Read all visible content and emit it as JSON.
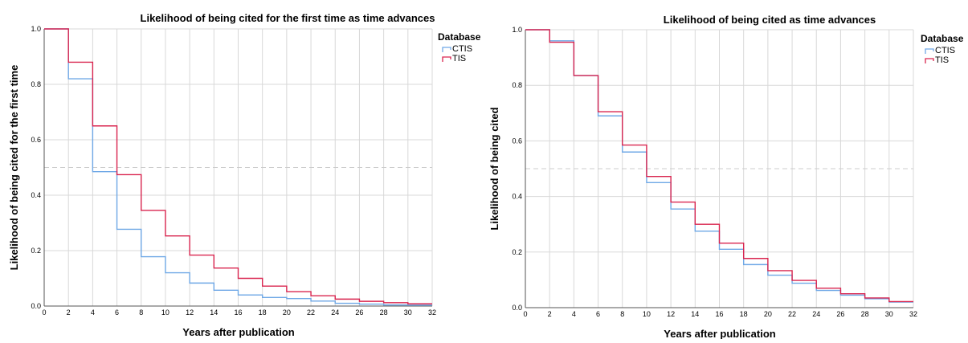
{
  "chart_data": [
    {
      "type": "line",
      "step": true,
      "title": "Likelihood of being cited for the first time as time advances",
      "xlabel": "Years after publication",
      "ylabel": "Likelihood of being cited for the first time",
      "xlim": [
        0,
        32
      ],
      "ylim": [
        0,
        1
      ],
      "x_ticks": [
        "0",
        "2",
        "4",
        "6",
        "8",
        "10",
        "12",
        "14",
        "16",
        "18",
        "20",
        "22",
        "24",
        "26",
        "28",
        "30",
        "32"
      ],
      "y_ticks": [
        "0.0",
        "0.2",
        "0.4",
        "0.6",
        "0.8",
        "1.0"
      ],
      "reference_line": 0.5,
      "grid": true,
      "legend": {
        "title": "Database",
        "position": "top-right"
      },
      "x": [
        0,
        2,
        4,
        6,
        8,
        10,
        12,
        14,
        16,
        18,
        20,
        22,
        24,
        26,
        28,
        30,
        32
      ],
      "series": [
        {
          "name": "CTIS",
          "color": "#6fa8e6",
          "values": [
            1.0,
            0.82,
            0.485,
            0.277,
            0.178,
            0.12,
            0.083,
            0.057,
            0.04,
            0.031,
            0.027,
            0.018,
            0.01,
            0.007,
            0.004,
            0.003,
            0.003
          ]
        },
        {
          "name": "TIS",
          "color": "#d9254f",
          "values": [
            1.0,
            0.88,
            0.65,
            0.474,
            0.345,
            0.253,
            0.184,
            0.137,
            0.1,
            0.072,
            0.052,
            0.037,
            0.025,
            0.017,
            0.012,
            0.008,
            0.008
          ]
        }
      ]
    },
    {
      "type": "line",
      "step": true,
      "title": "Likelihood of being cited as time advances",
      "xlabel": "Years after publication",
      "ylabel": "Likelihood of being cited",
      "xlim": [
        0,
        32
      ],
      "ylim": [
        0,
        1
      ],
      "x_ticks": [
        "0",
        "2",
        "4",
        "6",
        "8",
        "10",
        "12",
        "14",
        "16",
        "18",
        "20",
        "22",
        "24",
        "26",
        "28",
        "30",
        "32"
      ],
      "y_ticks": [
        "0.0",
        "0.2",
        "0.4",
        "0.6",
        "0.8",
        "1.0"
      ],
      "reference_line": 0.5,
      "grid": true,
      "legend": {
        "title": "Database",
        "position": "top-right"
      },
      "x": [
        0,
        2,
        4,
        6,
        8,
        10,
        12,
        14,
        16,
        18,
        20,
        22,
        24,
        26,
        28,
        30,
        32
      ],
      "series": [
        {
          "name": "CTIS",
          "color": "#6fa8e6",
          "values": [
            1.0,
            0.96,
            0.835,
            0.69,
            0.56,
            0.45,
            0.355,
            0.275,
            0.21,
            0.155,
            0.117,
            0.088,
            0.062,
            0.045,
            0.032,
            0.02,
            0.02
          ]
        },
        {
          "name": "TIS",
          "color": "#d9254f",
          "values": [
            1.0,
            0.955,
            0.835,
            0.705,
            0.585,
            0.472,
            0.38,
            0.3,
            0.232,
            0.177,
            0.133,
            0.098,
            0.07,
            0.05,
            0.035,
            0.022,
            0.022
          ]
        }
      ]
    }
  ]
}
